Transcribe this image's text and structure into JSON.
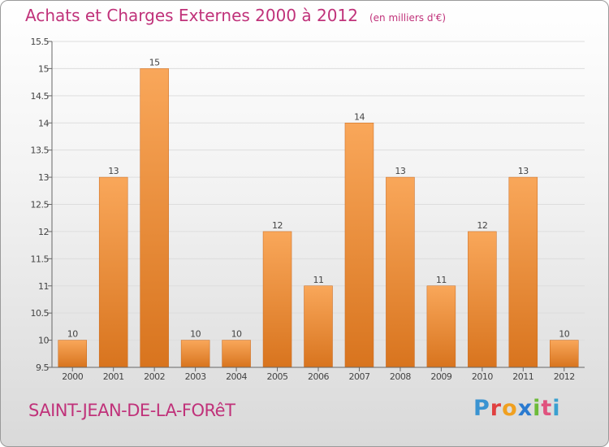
{
  "title": "Achats et Charges Externes 2000 à 2012",
  "subtitle": "(en milliers d'€)",
  "commune": "SAINT-JEAN-DE-LA-FORêT",
  "logo": {
    "text": "Proxiti",
    "letters": [
      "P",
      "r",
      "o",
      "x",
      "i",
      "t",
      "i"
    ]
  },
  "colors": {
    "bar_light": "#f9a75a",
    "bar_dark": "#d8741e",
    "title": "#c0327a",
    "grid": "#dddddd"
  },
  "chart_data": {
    "type": "bar",
    "categories": [
      "2000",
      "2001",
      "2002",
      "2003",
      "2004",
      "2005",
      "2006",
      "2007",
      "2008",
      "2009",
      "2010",
      "2011",
      "2012"
    ],
    "values": [
      10,
      13,
      15,
      10,
      10,
      12,
      11,
      14,
      13,
      11,
      12,
      13,
      10
    ],
    "data_labels": [
      "10",
      "13",
      "15",
      "10",
      "10",
      "12",
      "11",
      "14",
      "13",
      "11",
      "12",
      "13",
      "10"
    ],
    "yticks": [
      9.5,
      10,
      10.5,
      11,
      11.5,
      12,
      12.5,
      13,
      13.5,
      14,
      14.5,
      15,
      15.5
    ],
    "ytick_labels": [
      "9.5",
      "10",
      "10.5",
      "11",
      "11.5",
      "12",
      "12.5",
      "13",
      "13.5",
      "14",
      "14.5",
      "15",
      "15.5"
    ],
    "ylim": [
      9.5,
      15.5
    ],
    "grid": true,
    "title": "Achats et Charges Externes 2000 à 2012"
  }
}
